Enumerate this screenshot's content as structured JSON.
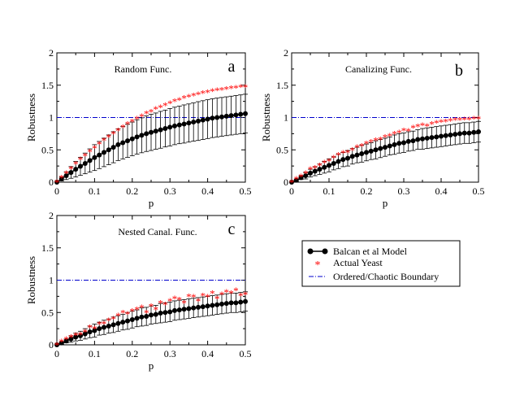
{
  "figure": {
    "legend": {
      "entries": [
        {
          "key": "model",
          "label": "Balcan et al Model",
          "color": "#000000",
          "marker": "circle-line"
        },
        {
          "key": "yeast",
          "label": "Actual Yeast",
          "color": "#ff0000",
          "marker": "star"
        },
        {
          "key": "boundary",
          "label": "Ordered/Chaotic Boundary",
          "color": "#0000cc",
          "marker": "dash-dot"
        }
      ]
    },
    "colors": {
      "model": "#000000",
      "yeast": "#ff0000",
      "boundary": "#0000cc"
    }
  },
  "chart_data": [
    {
      "type": "line",
      "panel": "a",
      "title": "Random Func.",
      "xlabel": "p",
      "ylabel": "Robustness",
      "xlim": [
        0,
        0.5
      ],
      "ylim": [
        0,
        2
      ],
      "xticks": [
        "0",
        "0.1",
        "0.2",
        "0.3",
        "0.4",
        "0.5"
      ],
      "yticks": [
        "0",
        "0.5",
        "1",
        "1.5",
        "2"
      ],
      "boundary": 1.0,
      "series": [
        {
          "name": "Balcan et al Model",
          "type": "line-errorbar",
          "x": [
            0,
            0.0125,
            0.025,
            0.0375,
            0.05,
            0.0625,
            0.075,
            0.0875,
            0.1,
            0.1125,
            0.125,
            0.1375,
            0.15,
            0.1625,
            0.175,
            0.1875,
            0.2,
            0.2125,
            0.225,
            0.2375,
            0.25,
            0.2625,
            0.275,
            0.2875,
            0.3,
            0.3125,
            0.325,
            0.3375,
            0.35,
            0.3625,
            0.375,
            0.3875,
            0.4,
            0.4125,
            0.425,
            0.4375,
            0.45,
            0.4625,
            0.475,
            0.4875,
            0.5
          ],
          "y": [
            0,
            0.05,
            0.1,
            0.15,
            0.2,
            0.245,
            0.29,
            0.335,
            0.38,
            0.42,
            0.46,
            0.5,
            0.54,
            0.58,
            0.61,
            0.64,
            0.67,
            0.7,
            0.725,
            0.75,
            0.77,
            0.79,
            0.81,
            0.83,
            0.85,
            0.87,
            0.885,
            0.9,
            0.915,
            0.93,
            0.945,
            0.96,
            0.975,
            0.99,
            1.0,
            1.01,
            1.02,
            1.03,
            1.04,
            1.05,
            1.06
          ],
          "err": [
            0,
            0.03,
            0.06,
            0.09,
            0.12,
            0.14,
            0.16,
            0.18,
            0.2,
            0.21,
            0.22,
            0.23,
            0.24,
            0.245,
            0.25,
            0.255,
            0.26,
            0.265,
            0.27,
            0.275,
            0.28,
            0.28,
            0.285,
            0.285,
            0.29,
            0.29,
            0.29,
            0.295,
            0.295,
            0.295,
            0.3,
            0.3,
            0.3,
            0.3,
            0.3,
            0.3,
            0.3,
            0.3,
            0.3,
            0.3,
            0.3
          ]
        },
        {
          "name": "Actual Yeast",
          "type": "scatter",
          "x": [
            0,
            0.0125,
            0.025,
            0.0375,
            0.05,
            0.0625,
            0.075,
            0.0875,
            0.1,
            0.1125,
            0.125,
            0.1375,
            0.15,
            0.1625,
            0.175,
            0.1875,
            0.2,
            0.2125,
            0.225,
            0.2375,
            0.25,
            0.2625,
            0.275,
            0.2875,
            0.3,
            0.3125,
            0.325,
            0.3375,
            0.35,
            0.3625,
            0.375,
            0.3875,
            0.4,
            0.4125,
            0.425,
            0.4375,
            0.45,
            0.4625,
            0.475,
            0.4875,
            0.5
          ],
          "y": [
            0,
            0.07,
            0.14,
            0.21,
            0.28,
            0.35,
            0.41,
            0.47,
            0.53,
            0.59,
            0.65,
            0.7,
            0.75,
            0.8,
            0.85,
            0.9,
            0.94,
            0.98,
            1.02,
            1.06,
            1.09,
            1.13,
            1.16,
            1.19,
            1.22,
            1.25,
            1.27,
            1.3,
            1.32,
            1.34,
            1.36,
            1.38,
            1.39,
            1.41,
            1.42,
            1.43,
            1.44,
            1.45,
            1.46,
            1.47,
            1.47
          ]
        }
      ]
    },
    {
      "type": "line",
      "panel": "b",
      "title": "Canalizing Func.",
      "xlabel": "p",
      "ylabel": "Robustness",
      "xlim": [
        0,
        0.5
      ],
      "ylim": [
        0,
        2
      ],
      "xticks": [
        "0",
        "0.1",
        "0.2",
        "0.3",
        "0.4",
        "0.5"
      ],
      "yticks": [
        "0",
        "0.5",
        "1",
        "1.5",
        "2"
      ],
      "boundary": 1.0,
      "series": [
        {
          "name": "Balcan et al Model",
          "type": "line-errorbar",
          "x": [
            0,
            0.0125,
            0.025,
            0.0375,
            0.05,
            0.0625,
            0.075,
            0.0875,
            0.1,
            0.1125,
            0.125,
            0.1375,
            0.15,
            0.1625,
            0.175,
            0.1875,
            0.2,
            0.2125,
            0.225,
            0.2375,
            0.25,
            0.2625,
            0.275,
            0.2875,
            0.3,
            0.3125,
            0.325,
            0.3375,
            0.35,
            0.3625,
            0.375,
            0.3875,
            0.4,
            0.4125,
            0.425,
            0.4375,
            0.45,
            0.4625,
            0.475,
            0.4875,
            0.5
          ],
          "y": [
            0,
            0.03,
            0.07,
            0.1,
            0.14,
            0.17,
            0.2,
            0.23,
            0.26,
            0.29,
            0.32,
            0.35,
            0.37,
            0.4,
            0.42,
            0.44,
            0.46,
            0.48,
            0.5,
            0.52,
            0.54,
            0.56,
            0.58,
            0.6,
            0.61,
            0.63,
            0.64,
            0.66,
            0.67,
            0.68,
            0.69,
            0.7,
            0.71,
            0.72,
            0.73,
            0.74,
            0.75,
            0.76,
            0.76,
            0.77,
            0.78
          ],
          "err": [
            0,
            0.02,
            0.03,
            0.05,
            0.06,
            0.07,
            0.08,
            0.09,
            0.1,
            0.1,
            0.11,
            0.11,
            0.12,
            0.12,
            0.12,
            0.13,
            0.13,
            0.13,
            0.14,
            0.14,
            0.14,
            0.14,
            0.15,
            0.15,
            0.15,
            0.15,
            0.15,
            0.15,
            0.16,
            0.16,
            0.16,
            0.16,
            0.16,
            0.16,
            0.16,
            0.16,
            0.16,
            0.16,
            0.16,
            0.16,
            0.16
          ]
        },
        {
          "name": "Actual Yeast",
          "type": "scatter",
          "x": [
            0,
            0.0125,
            0.025,
            0.0375,
            0.05,
            0.0625,
            0.075,
            0.0875,
            0.1,
            0.1125,
            0.125,
            0.1375,
            0.15,
            0.1625,
            0.175,
            0.1875,
            0.2,
            0.2125,
            0.225,
            0.2375,
            0.25,
            0.2625,
            0.275,
            0.2875,
            0.3,
            0.3125,
            0.325,
            0.3375,
            0.35,
            0.3625,
            0.375,
            0.3875,
            0.4,
            0.4125,
            0.425,
            0.4375,
            0.45,
            0.4625,
            0.475,
            0.4875,
            0.5
          ],
          "y": [
            0,
            0.05,
            0.09,
            0.14,
            0.2,
            0.22,
            0.26,
            0.3,
            0.33,
            0.38,
            0.42,
            0.45,
            0.46,
            0.5,
            0.54,
            0.56,
            0.6,
            0.62,
            0.65,
            0.66,
            0.7,
            0.72,
            0.75,
            0.77,
            0.8,
            0.79,
            0.84,
            0.86,
            0.88,
            0.87,
            0.9,
            0.92,
            0.93,
            0.94,
            0.95,
            0.96,
            0.96,
            0.97,
            0.97,
            0.98,
            0.98
          ]
        }
      ]
    },
    {
      "type": "line",
      "panel": "c",
      "title": "Nested Canal. Func.",
      "xlabel": "p",
      "ylabel": "Robustness",
      "xlim": [
        0,
        0.5
      ],
      "ylim": [
        0,
        2
      ],
      "xticks": [
        "0",
        "0.1",
        "0.2",
        "0.3",
        "0.4",
        "0.5"
      ],
      "yticks": [
        "0",
        "0.5",
        "1",
        "1.5",
        "2"
      ],
      "boundary": 1.0,
      "series": [
        {
          "name": "Balcan et al Model",
          "type": "line-errorbar",
          "x": [
            0,
            0.0125,
            0.025,
            0.0375,
            0.05,
            0.0625,
            0.075,
            0.0875,
            0.1,
            0.1125,
            0.125,
            0.1375,
            0.15,
            0.1625,
            0.175,
            0.1875,
            0.2,
            0.2125,
            0.225,
            0.2375,
            0.25,
            0.2625,
            0.275,
            0.2875,
            0.3,
            0.3125,
            0.325,
            0.3375,
            0.35,
            0.3625,
            0.375,
            0.3875,
            0.4,
            0.4125,
            0.425,
            0.4375,
            0.45,
            0.4625,
            0.475,
            0.4875,
            0.5
          ],
          "y": [
            0,
            0.03,
            0.06,
            0.09,
            0.12,
            0.14,
            0.17,
            0.2,
            0.22,
            0.25,
            0.27,
            0.29,
            0.31,
            0.33,
            0.35,
            0.37,
            0.39,
            0.41,
            0.43,
            0.44,
            0.46,
            0.47,
            0.49,
            0.5,
            0.51,
            0.53,
            0.54,
            0.55,
            0.56,
            0.57,
            0.58,
            0.59,
            0.6,
            0.61,
            0.62,
            0.63,
            0.64,
            0.65,
            0.65,
            0.66,
            0.67
          ],
          "err": [
            0,
            0.02,
            0.03,
            0.05,
            0.06,
            0.07,
            0.08,
            0.09,
            0.1,
            0.1,
            0.11,
            0.11,
            0.12,
            0.12,
            0.12,
            0.13,
            0.13,
            0.13,
            0.14,
            0.14,
            0.14,
            0.14,
            0.15,
            0.15,
            0.15,
            0.15,
            0.15,
            0.15,
            0.15,
            0.15,
            0.15,
            0.15,
            0.15,
            0.15,
            0.15,
            0.15,
            0.15,
            0.15,
            0.15,
            0.15,
            0.15
          ]
        },
        {
          "name": "Actual Yeast",
          "type": "scatter",
          "x": [
            0,
            0.0125,
            0.025,
            0.0375,
            0.05,
            0.0625,
            0.075,
            0.0875,
            0.1,
            0.1125,
            0.125,
            0.1375,
            0.15,
            0.1625,
            0.175,
            0.1875,
            0.2,
            0.2125,
            0.225,
            0.2375,
            0.25,
            0.2625,
            0.275,
            0.2875,
            0.3,
            0.3125,
            0.325,
            0.3375,
            0.35,
            0.3625,
            0.375,
            0.3875,
            0.4,
            0.4125,
            0.425,
            0.4375,
            0.45,
            0.4625,
            0.475,
            0.4875,
            0.5
          ],
          "y": [
            0,
            0.05,
            0.09,
            0.12,
            0.15,
            0.16,
            0.2,
            0.27,
            0.25,
            0.32,
            0.33,
            0.38,
            0.4,
            0.45,
            0.5,
            0.48,
            0.52,
            0.55,
            0.58,
            0.5,
            0.6,
            0.55,
            0.65,
            0.62,
            0.68,
            0.72,
            0.7,
            0.65,
            0.75,
            0.74,
            0.68,
            0.76,
            0.74,
            0.8,
            0.72,
            0.78,
            0.82,
            0.8,
            0.84,
            0.76,
            0.78
          ]
        }
      ]
    }
  ]
}
